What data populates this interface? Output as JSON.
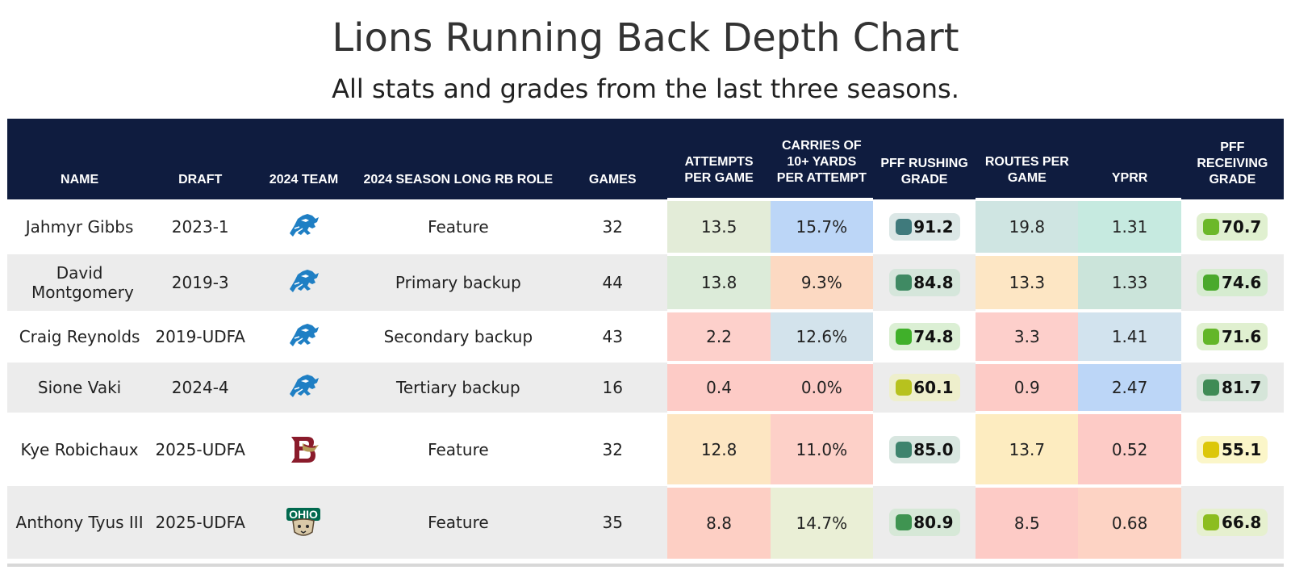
{
  "title": "Lions Running Back Depth Chart",
  "subtitle": "All stats and grades from the last three seasons.",
  "headers": {
    "name": "NAME",
    "draft": "DRAFT",
    "team": "2024 TEAM",
    "role": "2024 SEASON LONG RB ROLE",
    "games": "GAMES",
    "attempts": "ATTEMPTS PER GAME",
    "carries10": "CARRIES OF 10+ YARDS PER ATTEMPT",
    "rushing_grade": "PFF RUSHING GRADE",
    "routes": "ROUTES PER GAME",
    "yprr": "YPRR",
    "receiving_grade": "PFF RECEIVING GRADE"
  },
  "rows": [
    {
      "name": "Jahmyr Gibbs",
      "draft": "2023-1",
      "team_logo": "lions-logo-icon",
      "role": "Feature",
      "games": "32",
      "attempts": "13.5",
      "carries10": "15.7%",
      "rushing_grade": "91.2",
      "routes": "19.8",
      "yprr": "1.31",
      "receiving_grade": "70.7",
      "colors": {
        "attempts": "#e3ecd8",
        "carries10": "#bcd6f7",
        "routes": "#cfe5e2",
        "yprr": "#c6eae0",
        "rush_bg": "#dbe7e6",
        "rush_sq": "#3f7a7c",
        "rec_bg": "#e0f0d0",
        "rec_sq": "#6cb829"
      }
    },
    {
      "name": "David Montgomery",
      "draft": "2019-3",
      "team_logo": "lions-logo-icon",
      "role": "Primary backup",
      "games": "44",
      "attempts": "13.8",
      "carries10": "9.3%",
      "rushing_grade": "84.8",
      "routes": "13.3",
      "yprr": "1.33",
      "receiving_grade": "74.6",
      "colors": {
        "attempts": "#dcebd9",
        "carries10": "#fcd9c2",
        "routes": "#fde6c4",
        "yprr": "#cbe4da",
        "rush_bg": "#d5e6db",
        "rush_sq": "#3f8a63",
        "rec_bg": "#d6ecd0",
        "rec_sq": "#4aa92c"
      }
    },
    {
      "name": "Craig Reynolds",
      "draft": "2019-UDFA",
      "team_logo": "lions-logo-icon",
      "role": "Secondary backup",
      "games": "43",
      "attempts": "2.2",
      "carries10": "12.6%",
      "rushing_grade": "74.8",
      "routes": "3.3",
      "yprr": "1.41",
      "receiving_grade": "71.6",
      "colors": {
        "attempts": "#fdd0cb",
        "carries10": "#d3e3ec",
        "routes": "#fdcfcb",
        "yprr": "#d2e3ee",
        "rush_bg": "#dbefd4",
        "rush_sq": "#40b02a",
        "rec_bg": "#e0f0d0",
        "rec_sq": "#63b628"
      }
    },
    {
      "name": "Sione Vaki",
      "draft": "2024-4",
      "team_logo": "lions-logo-icon",
      "role": "Tertiary backup",
      "games": "16",
      "attempts": "0.4",
      "carries10": "0.0%",
      "rushing_grade": "60.1",
      "routes": "0.9",
      "yprr": "2.47",
      "receiving_grade": "81.7",
      "colors": {
        "attempts": "#fdcbc6",
        "carries10": "#fdcbc6",
        "routes": "#fdcbc6",
        "yprr": "#bcd6f7",
        "rush_bg": "#eeefcc",
        "rush_sq": "#b7c21e",
        "rec_bg": "#d5e5d9",
        "rec_sq": "#3f8b55"
      }
    },
    {
      "name": "Kye Robichaux",
      "draft": "2025-UDFA",
      "team_logo": "boston-college-logo-icon",
      "role": "Feature",
      "games": "32",
      "attempts": "12.8",
      "carries10": "11.0%",
      "rushing_grade": "85.0",
      "routes": "13.7",
      "yprr": "0.52",
      "receiving_grade": "55.1",
      "colors": {
        "attempts": "#fde6c2",
        "carries10": "#fdd0c8",
        "routes": "#fdecc0",
        "yprr": "#fdcbc6",
        "rush_bg": "#d8e6e0",
        "rush_sq": "#3e836d",
        "rec_bg": "#fbf6c9",
        "rec_sq": "#dcc70a"
      }
    },
    {
      "name": "Anthony Tyus III",
      "draft": "2025-UDFA",
      "team_logo": "ohio-logo-icon",
      "role": "Feature",
      "games": "35",
      "attempts": "8.8",
      "carries10": "14.7%",
      "rushing_grade": "80.9",
      "routes": "8.5",
      "yprr": "0.68",
      "receiving_grade": "66.8",
      "colors": {
        "attempts": "#fdcfc4",
        "carries10": "#eaefd6",
        "routes": "#fdcbc6",
        "yprr": "#fdd3c4",
        "rush_bg": "#d6e8d7",
        "rush_sq": "#3f9451",
        "rec_bg": "#e6f0cf",
        "rec_sq": "#8cbd20"
      }
    }
  ]
}
